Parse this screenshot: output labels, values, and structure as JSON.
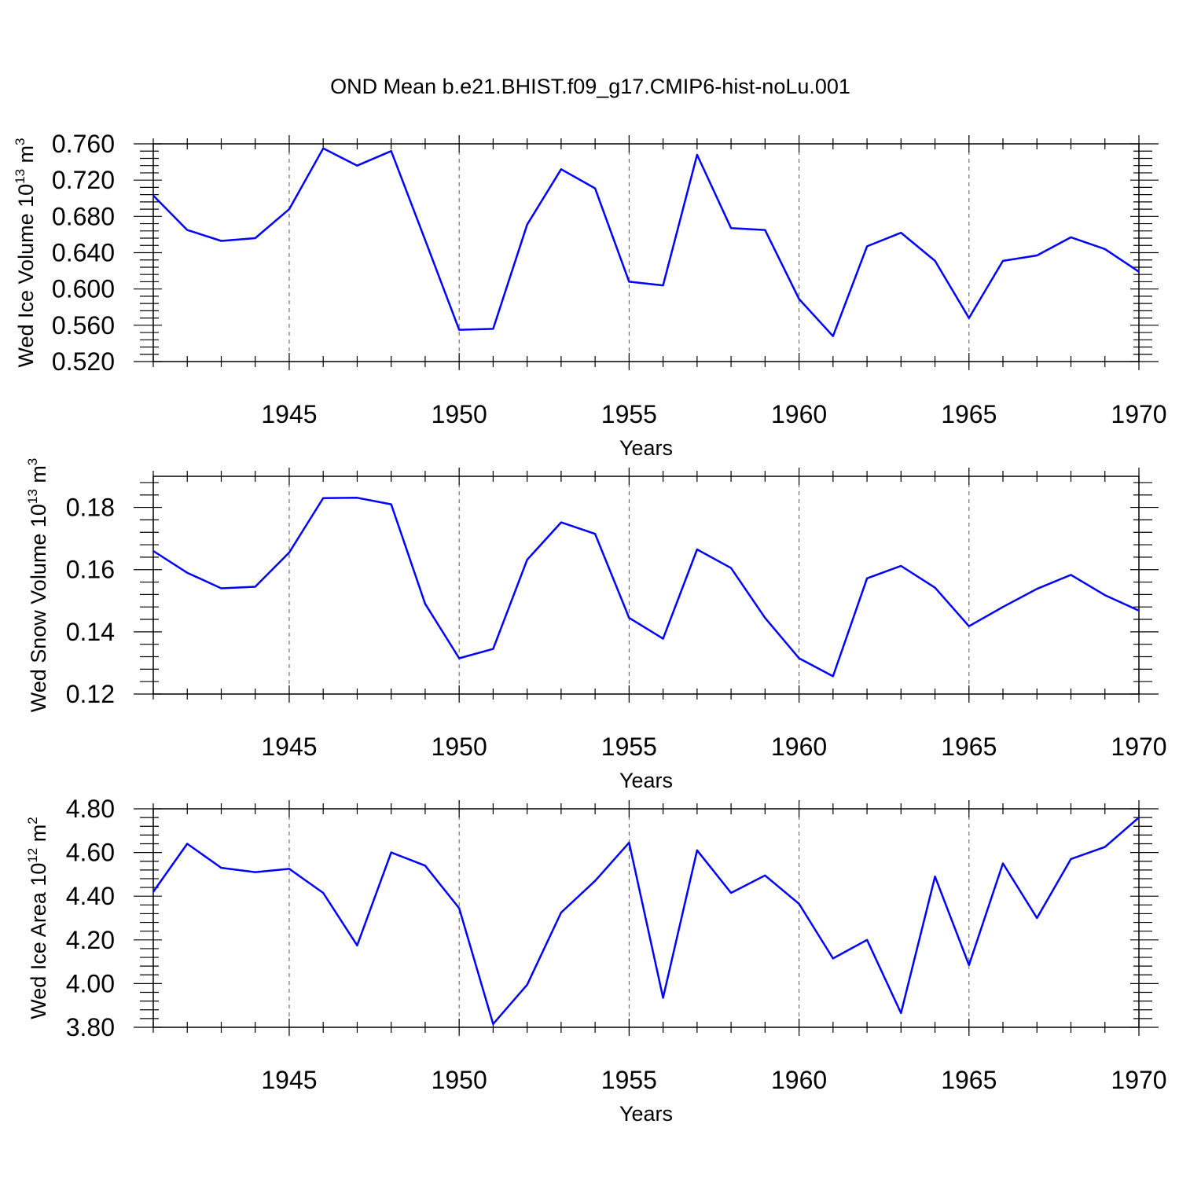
{
  "chart_data": {
    "type": "line",
    "title": "OND Mean b.e21.BHIST.f09_g17.CMIP6-hist-noLu.001",
    "line_color": "#0000ff",
    "x": [
      1941,
      1942,
      1943,
      1944,
      1945,
      1946,
      1947,
      1948,
      1949,
      1950,
      1951,
      1952,
      1953,
      1954,
      1955,
      1956,
      1957,
      1958,
      1959,
      1960,
      1961,
      1962,
      1963,
      1964,
      1965,
      1966,
      1967,
      1968,
      1969,
      1970
    ],
    "xlim": [
      1941,
      1970
    ],
    "xticks": [
      1945,
      1950,
      1955,
      1960,
      1965,
      1970
    ],
    "panels": [
      {
        "ylabel_main": "Wed Ice Volume 10",
        "ylabel_exp": "13",
        "ylabel_unit": " m",
        "ylabel_unit_exp": "3",
        "xlabel": "Years",
        "ylim": [
          0.52,
          0.76
        ],
        "yticks": [
          "0.520",
          "0.560",
          "0.600",
          "0.640",
          "0.680",
          "0.720",
          "0.760"
        ],
        "grid": "vertical dashed at major x ticks",
        "values": [
          0.703,
          0.665,
          0.653,
          0.656,
          0.688,
          0.755,
          0.736,
          0.752,
          0.654,
          0.555,
          0.556,
          0.671,
          0.732,
          0.711,
          0.608,
          0.604,
          0.748,
          0.667,
          0.665,
          0.589,
          0.548,
          0.647,
          0.662,
          0.631,
          0.568,
          0.631,
          0.637,
          0.657,
          0.644,
          0.619
        ]
      },
      {
        "ylabel_main": "Wed Snow Volume 10",
        "ylabel_exp": "13",
        "ylabel_unit": " m",
        "ylabel_unit_exp": "3",
        "xlabel": "Years",
        "ylim": [
          0.12,
          0.19
        ],
        "yticks": [
          "0.12",
          "0.14",
          "0.16",
          "0.18"
        ],
        "grid": "vertical dashed at major x ticks",
        "values": [
          0.166,
          0.159,
          0.154,
          0.1545,
          0.1655,
          0.183,
          0.1831,
          0.181,
          0.149,
          0.1315,
          0.1345,
          0.1632,
          0.1752,
          0.1715,
          0.1445,
          0.1378,
          0.1665,
          0.1605,
          0.1445,
          0.1315,
          0.1257,
          0.1572,
          0.1612,
          0.1542,
          0.1418,
          0.148,
          0.1538,
          0.1583,
          0.1518,
          0.1468
        ]
      },
      {
        "ylabel_main": "Wed Ice Area 10",
        "ylabel_exp": "12",
        "ylabel_unit": " m",
        "ylabel_unit_exp": "2",
        "xlabel": "Years",
        "ylim": [
          3.8,
          4.8
        ],
        "yticks": [
          "3.80",
          "4.00",
          "4.20",
          "4.40",
          "4.60",
          "4.80"
        ],
        "grid": "vertical dashed at major x ticks",
        "values": [
          4.42,
          4.64,
          4.53,
          4.51,
          4.525,
          4.415,
          4.175,
          4.6,
          4.54,
          4.345,
          3.815,
          3.995,
          4.325,
          4.47,
          4.645,
          3.935,
          4.61,
          4.415,
          4.495,
          4.365,
          4.115,
          4.2,
          3.865,
          4.49,
          4.085,
          4.55,
          4.3,
          4.57,
          4.625,
          4.76
        ]
      }
    ]
  }
}
